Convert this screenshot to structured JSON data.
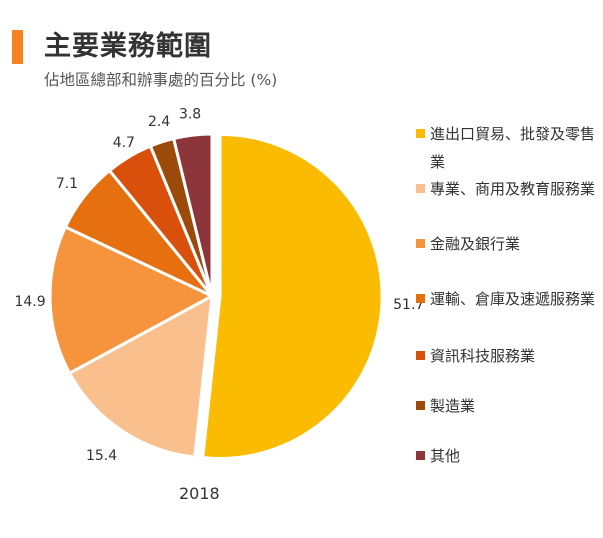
{
  "header": {
    "title": "主要業務範圍",
    "subtitle": "佔地區總部和辦事處的百分比 (%)"
  },
  "chart_data": {
    "type": "pie",
    "categories": [
      "進出口貿易、批發及零售業",
      "專業、商用及教育服務業",
      "金融及銀行業",
      "運輸、倉庫及速遞服務業",
      "資訊科技服務業",
      "製造業",
      "其他"
    ],
    "values": [
      51.7,
      15.4,
      14.9,
      7.1,
      4.7,
      2.4,
      3.8
    ],
    "value_labels": [
      "51.7",
      "15.4",
      "14.9",
      "7.1",
      "4.7",
      "2.4",
      "3.8"
    ],
    "colors": [
      "#fbbb00",
      "#f9c08e",
      "#f5943d",
      "#e66f10",
      "#d9500d",
      "#9c4a0a",
      "#8c353b"
    ],
    "xlabel": "2018",
    "legend_position": "right",
    "start_angle": "12 o'clock, clockwise",
    "exploded_slice": "進出口貿易、批發及零售業"
  }
}
